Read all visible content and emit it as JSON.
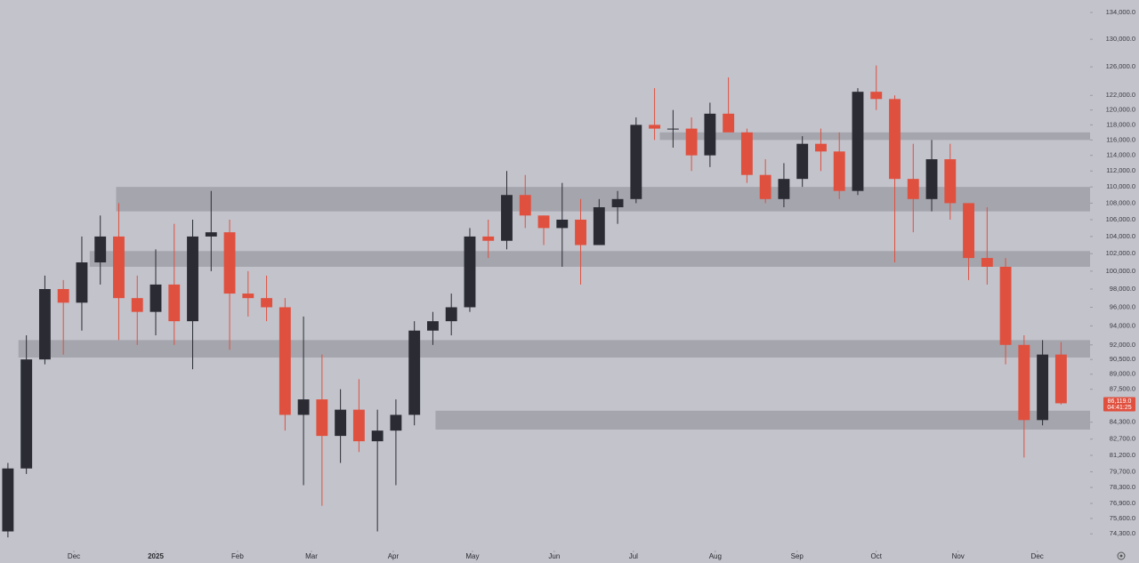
{
  "chart_data": {
    "type": "candlestick",
    "log_scale": true,
    "up_color": "#2b2c33",
    "down_color": "#e0503f",
    "zone_color": "#9a9ba3",
    "x": [
      0,
      7,
      14,
      21,
      28,
      35,
      42,
      49,
      56,
      63,
      70,
      77,
      84,
      91,
      98,
      105,
      112,
      119,
      126,
      133,
      140,
      147,
      154,
      161,
      168,
      175,
      182,
      189,
      196,
      203,
      210,
      217,
      224,
      231,
      238,
      245,
      252,
      259,
      266,
      273,
      280,
      287,
      294,
      301,
      308,
      315,
      322,
      329,
      336,
      343,
      350,
      357,
      364,
      371,
      378,
      385,
      392,
      399
    ],
    "open": [
      74500,
      80000,
      90500,
      98000,
      96500,
      101000,
      104000,
      97000,
      95500,
      98500,
      94500,
      104000,
      104500,
      97500,
      97000,
      96000,
      85000,
      86500,
      83000,
      85500,
      82500,
      83500,
      85000,
      93500,
      94500,
      96000,
      104000,
      103500,
      109000,
      106500,
      105000,
      106000,
      103000,
      107500,
      108500,
      118000,
      117500,
      117500,
      114000,
      119500,
      117000,
      111500,
      108500,
      111000,
      115500,
      114500,
      109500,
      122500,
      121500,
      111000,
      108500,
      113500,
      108000,
      101500,
      100500,
      92000,
      84500,
      91000
    ],
    "high": [
      80500,
      93000,
      99500,
      99000,
      104000,
      106500,
      108000,
      99500,
      102500,
      105500,
      106000,
      109500,
      106000,
      100000,
      99500,
      97000,
      95000,
      91000,
      87500,
      88500,
      85500,
      86500,
      94500,
      95500,
      97500,
      105000,
      106000,
      112000,
      111500,
      106500,
      110500,
      108500,
      108500,
      109500,
      119000,
      123000,
      120000,
      119000,
      121000,
      124500,
      117500,
      113500,
      113000,
      116500,
      117500,
      117000,
      123000,
      126200,
      122000,
      115500,
      116000,
      115500,
      108000,
      107500,
      101500,
      93000,
      92500,
      92300
    ],
    "low": [
      74000,
      79500,
      90000,
      91000,
      93500,
      98500,
      92500,
      92000,
      93000,
      92000,
      89500,
      100000,
      91500,
      95000,
      94500,
      83500,
      78500,
      76700,
      80500,
      81500,
      74500,
      78500,
      84000,
      92000,
      93000,
      95500,
      101500,
      102500,
      105000,
      103000,
      100500,
      98500,
      103000,
      105500,
      108000,
      116000,
      115000,
      112000,
      112500,
      117500,
      110500,
      108000,
      107500,
      110000,
      112000,
      108500,
      109000,
      120000,
      101000,
      104500,
      107000,
      106000,
      99000,
      98500,
      90000,
      81000,
      84000,
      86000
    ],
    "close": [
      80000,
      90500,
      98000,
      96500,
      101000,
      104000,
      97000,
      95500,
      98500,
      94500,
      104000,
      104500,
      97500,
      97000,
      96000,
      85000,
      86500,
      83000,
      85500,
      82500,
      83500,
      85000,
      93500,
      94500,
      96000,
      104000,
      103500,
      109000,
      106500,
      105000,
      106000,
      103000,
      107500,
      108500,
      118000,
      117500,
      117500,
      114000,
      119500,
      117000,
      111500,
      108500,
      111000,
      115500,
      114500,
      109500,
      122500,
      121500,
      111000,
      108500,
      113500,
      108000,
      101500,
      100500,
      92000,
      84500,
      91000,
      86119
    ],
    "zones": [
      {
        "low": 116000,
        "high": 117000,
        "start": 247
      },
      {
        "low": 107000,
        "high": 110000,
        "start": 41
      },
      {
        "low": 100500,
        "high": 102300,
        "start": 31
      },
      {
        "low": 90700,
        "high": 92500,
        "start": 4
      },
      {
        "low": 83600,
        "high": 85400,
        "start": 162
      }
    ],
    "last_price": {
      "value": 86119,
      "label": "86,119.0"
    },
    "countdown": "04:41:25",
    "xlim": [
      -3,
      410
    ],
    "ylim": [
      73200,
      135900
    ],
    "xticks": [
      {
        "value": 25,
        "label": "Dec"
      },
      {
        "value": 56,
        "label": "2025"
      },
      {
        "value": 87,
        "label": "Feb"
      },
      {
        "value": 115,
        "label": "Mar"
      },
      {
        "value": 146,
        "label": "Apr"
      },
      {
        "value": 176,
        "label": "May"
      },
      {
        "value": 207,
        "label": "Jun"
      },
      {
        "value": 237,
        "label": "Jul"
      },
      {
        "value": 268,
        "label": "Aug"
      },
      {
        "value": 299,
        "label": "Sep"
      },
      {
        "value": 329,
        "label": "Oct"
      },
      {
        "value": 360,
        "label": "Nov"
      },
      {
        "value": 390,
        "label": "Dec"
      }
    ],
    "yticks": [
      {
        "value": 134000,
        "label": "134,000.0"
      },
      {
        "value": 130000,
        "label": "130,000.0"
      },
      {
        "value": 126000,
        "label": "126,000.0"
      },
      {
        "value": 122000,
        "label": "122,000.0"
      },
      {
        "value": 120000,
        "label": "120,000.0"
      },
      {
        "value": 118000,
        "label": "118,000.0"
      },
      {
        "value": 116000,
        "label": "116,000.0"
      },
      {
        "value": 114000,
        "label": "114,000.0"
      },
      {
        "value": 112000,
        "label": "112,000.0"
      },
      {
        "value": 110000,
        "label": "110,000.0"
      },
      {
        "value": 108000,
        "label": "108,000.0"
      },
      {
        "value": 106000,
        "label": "106,000.0"
      },
      {
        "value": 104000,
        "label": "104,000.0"
      },
      {
        "value": 102000,
        "label": "102,000.0"
      },
      {
        "value": 100000,
        "label": "100,000.0"
      },
      {
        "value": 98000,
        "label": "98,000.0"
      },
      {
        "value": 96000,
        "label": "96,000.0"
      },
      {
        "value": 94000,
        "label": "94,000.0"
      },
      {
        "value": 92000,
        "label": "92,000.0"
      },
      {
        "value": 90500,
        "label": "90,500.0"
      },
      {
        "value": 89000,
        "label": "89,000.0"
      },
      {
        "value": 87500,
        "label": "87,500.0"
      },
      {
        "value": 84300,
        "label": "84,300.0"
      },
      {
        "value": 82700,
        "label": "82,700.0"
      },
      {
        "value": 81200,
        "label": "81,200.0"
      },
      {
        "value": 79700,
        "label": "79,700.0"
      },
      {
        "value": 78300,
        "label": "78,300.0"
      },
      {
        "value": 76900,
        "label": "76,900.0"
      },
      {
        "value": 75600,
        "label": "75,600.0"
      },
      {
        "value": 74300,
        "label": "74,300.0"
      }
    ]
  }
}
